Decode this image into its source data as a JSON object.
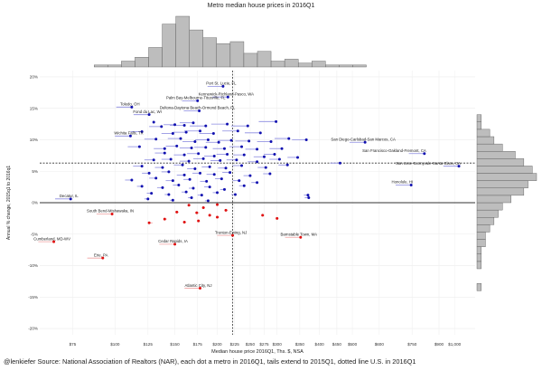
{
  "chart_data": {
    "type": "scatter",
    "title": "Metro median house prices in 2016Q1",
    "xlabel": "Median house price 2016Q1, Ths. $, NSA",
    "ylabel": "Annual % change, 2015q1 to 2016q1",
    "x_scale": "log",
    "xlim": [
      60,
      1150
    ],
    "ylim": [
      -21,
      21
    ],
    "x_ticks": [
      75,
      100,
      125,
      150,
      175,
      200,
      225,
      250,
      275,
      300,
      350,
      400,
      450,
      500,
      600,
      750,
      900,
      1000
    ],
    "x_tick_labels": [
      "$75",
      "$100",
      "$125",
      "$150",
      "$175",
      "$200",
      "$225",
      "$250",
      "$275",
      "$300",
      "$350",
      "$400",
      "$450",
      "$500",
      "$600",
      "$750",
      "$900",
      "$1,000"
    ],
    "y_ticks": [
      -20,
      -15,
      -10,
      -5,
      0,
      5,
      10,
      15,
      20
    ],
    "y_tick_labels": [
      "-20%",
      "-15%",
      "-10%",
      "-5%",
      "0%",
      "5%",
      "10%",
      "15%",
      "20%"
    ],
    "reference_lines": {
      "us_price": 222,
      "us_change": 6.3
    },
    "grid": true,
    "colors": {
      "positive": "#1010b0",
      "negative": "#e01010",
      "tail_positive": "#8a8ae0",
      "tail_negative": "#f0a0a0",
      "hist_fill": "#bdbdbd"
    },
    "labeled_points": [
      {
        "label": "Port St. Lucie, FL",
        "x": 208,
        "y": 18.5
      },
      {
        "label": "Kennewick-Richland-Pasco, WA",
        "x": 215,
        "y": 16.8
      },
      {
        "label": "Palm Bay-Melbourne-Titusville, FL",
        "x": 175,
        "y": 16.2
      },
      {
        "label": "Toledo, OH",
        "x": 112,
        "y": 15.2
      },
      {
        "label": "Deltona-Daytona Beach-Ormond Beach, FL",
        "x": 177,
        "y": 14.6
      },
      {
        "label": "Fond du Lac, WI",
        "x": 126,
        "y": 14.0
      },
      {
        "label": "Wichita Falls, TX",
        "x": 111,
        "y": 10.6
      },
      {
        "label": "San Diego-Carlsbad-San Marcos, CA",
        "x": 545,
        "y": 9.6
      },
      {
        "label": "San Francisco-Oakland-Fremont, CA",
        "x": 815,
        "y": 7.8
      },
      {
        "label": "San Jose-Sunnyvale-Santa Clara, CA",
        "x": 1030,
        "y": 5.8
      },
      {
        "label": "Honolulu, HI",
        "x": 745,
        "y": 2.8
      },
      {
        "label": "Decatur, IL",
        "x": 74,
        "y": 0.6
      },
      {
        "label": "South Bend-Mishawaka, IN",
        "x": 98,
        "y": -1.8
      },
      {
        "label": "Trenton-Ewing, NJ",
        "x": 222,
        "y": -5.2
      },
      {
        "label": "Barnstable Town, MA",
        "x": 352,
        "y": -5.5
      },
      {
        "label": "Cumberland, MD-WV",
        "x": 66,
        "y": -6.2
      },
      {
        "label": "Cedar Rapids, IA",
        "x": 150,
        "y": -6.6
      },
      {
        "label": "Erie, PA",
        "x": 92,
        "y": -8.8
      },
      {
        "label": "Atlantic City, NJ",
        "x": 178,
        "y": -13.6
      }
    ],
    "points": [
      [
        130,
        12.8,
        130
      ],
      [
        137,
        12.1,
        126
      ],
      [
        150,
        12.4,
        139
      ],
      [
        160,
        12.3,
        145
      ],
      [
        170,
        12.7,
        155
      ],
      [
        185,
        12.2,
        166
      ],
      [
        214,
        12.5,
        192
      ],
      [
        246,
        12.2,
        220
      ],
      [
        298,
        12.9,
        265
      ],
      [
        120,
        11.3,
        111
      ],
      [
        148,
        11.0,
        137
      ],
      [
        162,
        11.2,
        148
      ],
      [
        178,
        11.4,
        160
      ],
      [
        195,
        11.0,
        177
      ],
      [
        230,
        11.4,
        207
      ],
      [
        268,
        11.1,
        241
      ],
      [
        132,
        10.1,
        122
      ],
      [
        156,
        10.2,
        143
      ],
      [
        172,
        9.7,
        158
      ],
      [
        188,
        10.0,
        172
      ],
      [
        202,
        9.6,
        185
      ],
      [
        220,
        9.9,
        201
      ],
      [
        248,
        9.8,
        226
      ],
      [
        288,
        9.7,
        262
      ],
      [
        325,
        10.2,
        295
      ],
      [
        366,
        10.0,
        332
      ],
      [
        118,
        8.9,
        109
      ],
      [
        140,
        8.6,
        130
      ],
      [
        152,
        9.0,
        141
      ],
      [
        168,
        8.7,
        155
      ],
      [
        185,
        8.8,
        171
      ],
      [
        210,
        8.6,
        194
      ],
      [
        236,
        8.9,
        217
      ],
      [
        262,
        8.5,
        242
      ],
      [
        310,
        8.6,
        285
      ],
      [
        140,
        7.9,
        131
      ],
      [
        160,
        7.6,
        149
      ],
      [
        176,
        7.8,
        163
      ],
      [
        196,
        7.4,
        183
      ],
      [
        214,
        7.7,
        199
      ],
      [
        240,
        7.6,
        223
      ],
      [
        275,
        7.3,
        256
      ],
      [
        295,
        7.7,
        274
      ],
      [
        130,
        6.8,
        122
      ],
      [
        146,
        6.9,
        137
      ],
      [
        165,
        6.6,
        155
      ],
      [
        182,
        7.0,
        170
      ],
      [
        204,
        6.7,
        191
      ],
      [
        228,
        6.8,
        213
      ],
      [
        262,
        6.5,
        246
      ],
      [
        305,
        6.9,
        285
      ],
      [
        345,
        7.2,
        322
      ],
      [
        120,
        5.8,
        113
      ],
      [
        138,
        5.6,
        131
      ],
      [
        158,
        6.0,
        149
      ],
      [
        172,
        5.4,
        163
      ],
      [
        190,
        5.7,
        180
      ],
      [
        212,
        5.5,
        201
      ],
      [
        236,
        5.9,
        222
      ],
      [
        278,
        5.6,
        263
      ],
      [
        322,
        6.0,
        303
      ],
      [
        460,
        6.3,
        430
      ],
      [
        126,
        4.7,
        120
      ],
      [
        144,
        4.9,
        137
      ],
      [
        160,
        4.4,
        152
      ],
      [
        178,
        4.7,
        169
      ],
      [
        196,
        4.5,
        186
      ],
      [
        218,
        4.8,
        207
      ],
      [
        250,
        4.3,
        239
      ],
      [
        286,
        4.6,
        273
      ],
      [
        112,
        3.6,
        107
      ],
      [
        132,
        3.9,
        126
      ],
      [
        148,
        3.5,
        141
      ],
      [
        166,
        3.7,
        159
      ],
      [
        186,
        3.4,
        178
      ],
      [
        206,
        3.8,
        197
      ],
      [
        232,
        3.5,
        222
      ],
      [
        262,
        3.2,
        252
      ],
      [
        120,
        2.6,
        116
      ],
      [
        138,
        2.4,
        133
      ],
      [
        154,
        2.8,
        148
      ],
      [
        170,
        2.3,
        165
      ],
      [
        190,
        2.5,
        183
      ],
      [
        210,
        2.1,
        204
      ],
      [
        240,
        2.7,
        232
      ],
      [
        128,
        1.5,
        124
      ],
      [
        144,
        1.3,
        140
      ],
      [
        162,
        1.7,
        157
      ],
      [
        180,
        1.2,
        175
      ],
      [
        200,
        1.6,
        194
      ],
      [
        226,
        1.3,
        220
      ],
      [
        125,
        0.6,
        122
      ],
      [
        148,
        0.4,
        145
      ],
      [
        168,
        0.8,
        164
      ],
      [
        188,
        0.3,
        184
      ],
      [
        370,
        1.2,
        360
      ],
      [
        372,
        0.8,
        362
      ],
      [
        165,
        -0.4,
        167
      ],
      [
        182,
        -0.8,
        184
      ],
      [
        200,
        -0.3,
        202
      ],
      [
        212,
        -1.2,
        215
      ],
      [
        174,
        -1.6,
        177
      ],
      [
        190,
        -2.0,
        192
      ],
      [
        152,
        -1.5,
        154
      ],
      [
        140,
        -2.6,
        142
      ],
      [
        160,
        -3.1,
        162
      ],
      [
        176,
        -2.9,
        178
      ],
      [
        200,
        -2.3,
        203
      ],
      [
        126,
        -3.2,
        129
      ],
      [
        272,
        -2.0,
        275
      ],
      [
        300,
        -2.5,
        303
      ]
    ],
    "x_marginal": {
      "bins_start": 60,
      "bins_end": 1150,
      "counts": [
        0,
        0,
        0,
        0,
        1,
        1,
        3,
        5,
        10,
        22,
        26,
        19,
        15,
        12,
        13,
        7,
        8,
        3,
        4,
        2,
        3,
        1,
        1,
        1,
        0,
        0,
        0,
        0,
        0,
        0,
        0,
        0
      ]
    },
    "y_marginal": {
      "bins_start": -21,
      "bins_end": 21,
      "counts": [
        0,
        0,
        0,
        0,
        0,
        0,
        1,
        0,
        0,
        1,
        1,
        1,
        2,
        2,
        3,
        4,
        5,
        6,
        8,
        11,
        12,
        14,
        13,
        11,
        9,
        6,
        4,
        3,
        1,
        1,
        0,
        0,
        0,
        0,
        0,
        0
      ]
    }
  },
  "footer": {
    "text": "@lenkiefer Source: National Association of Realtors (NAR), each dot a metro in 2016Q1, tails extend to 2015Q1, dotted line U.S. in 2016Q1"
  }
}
